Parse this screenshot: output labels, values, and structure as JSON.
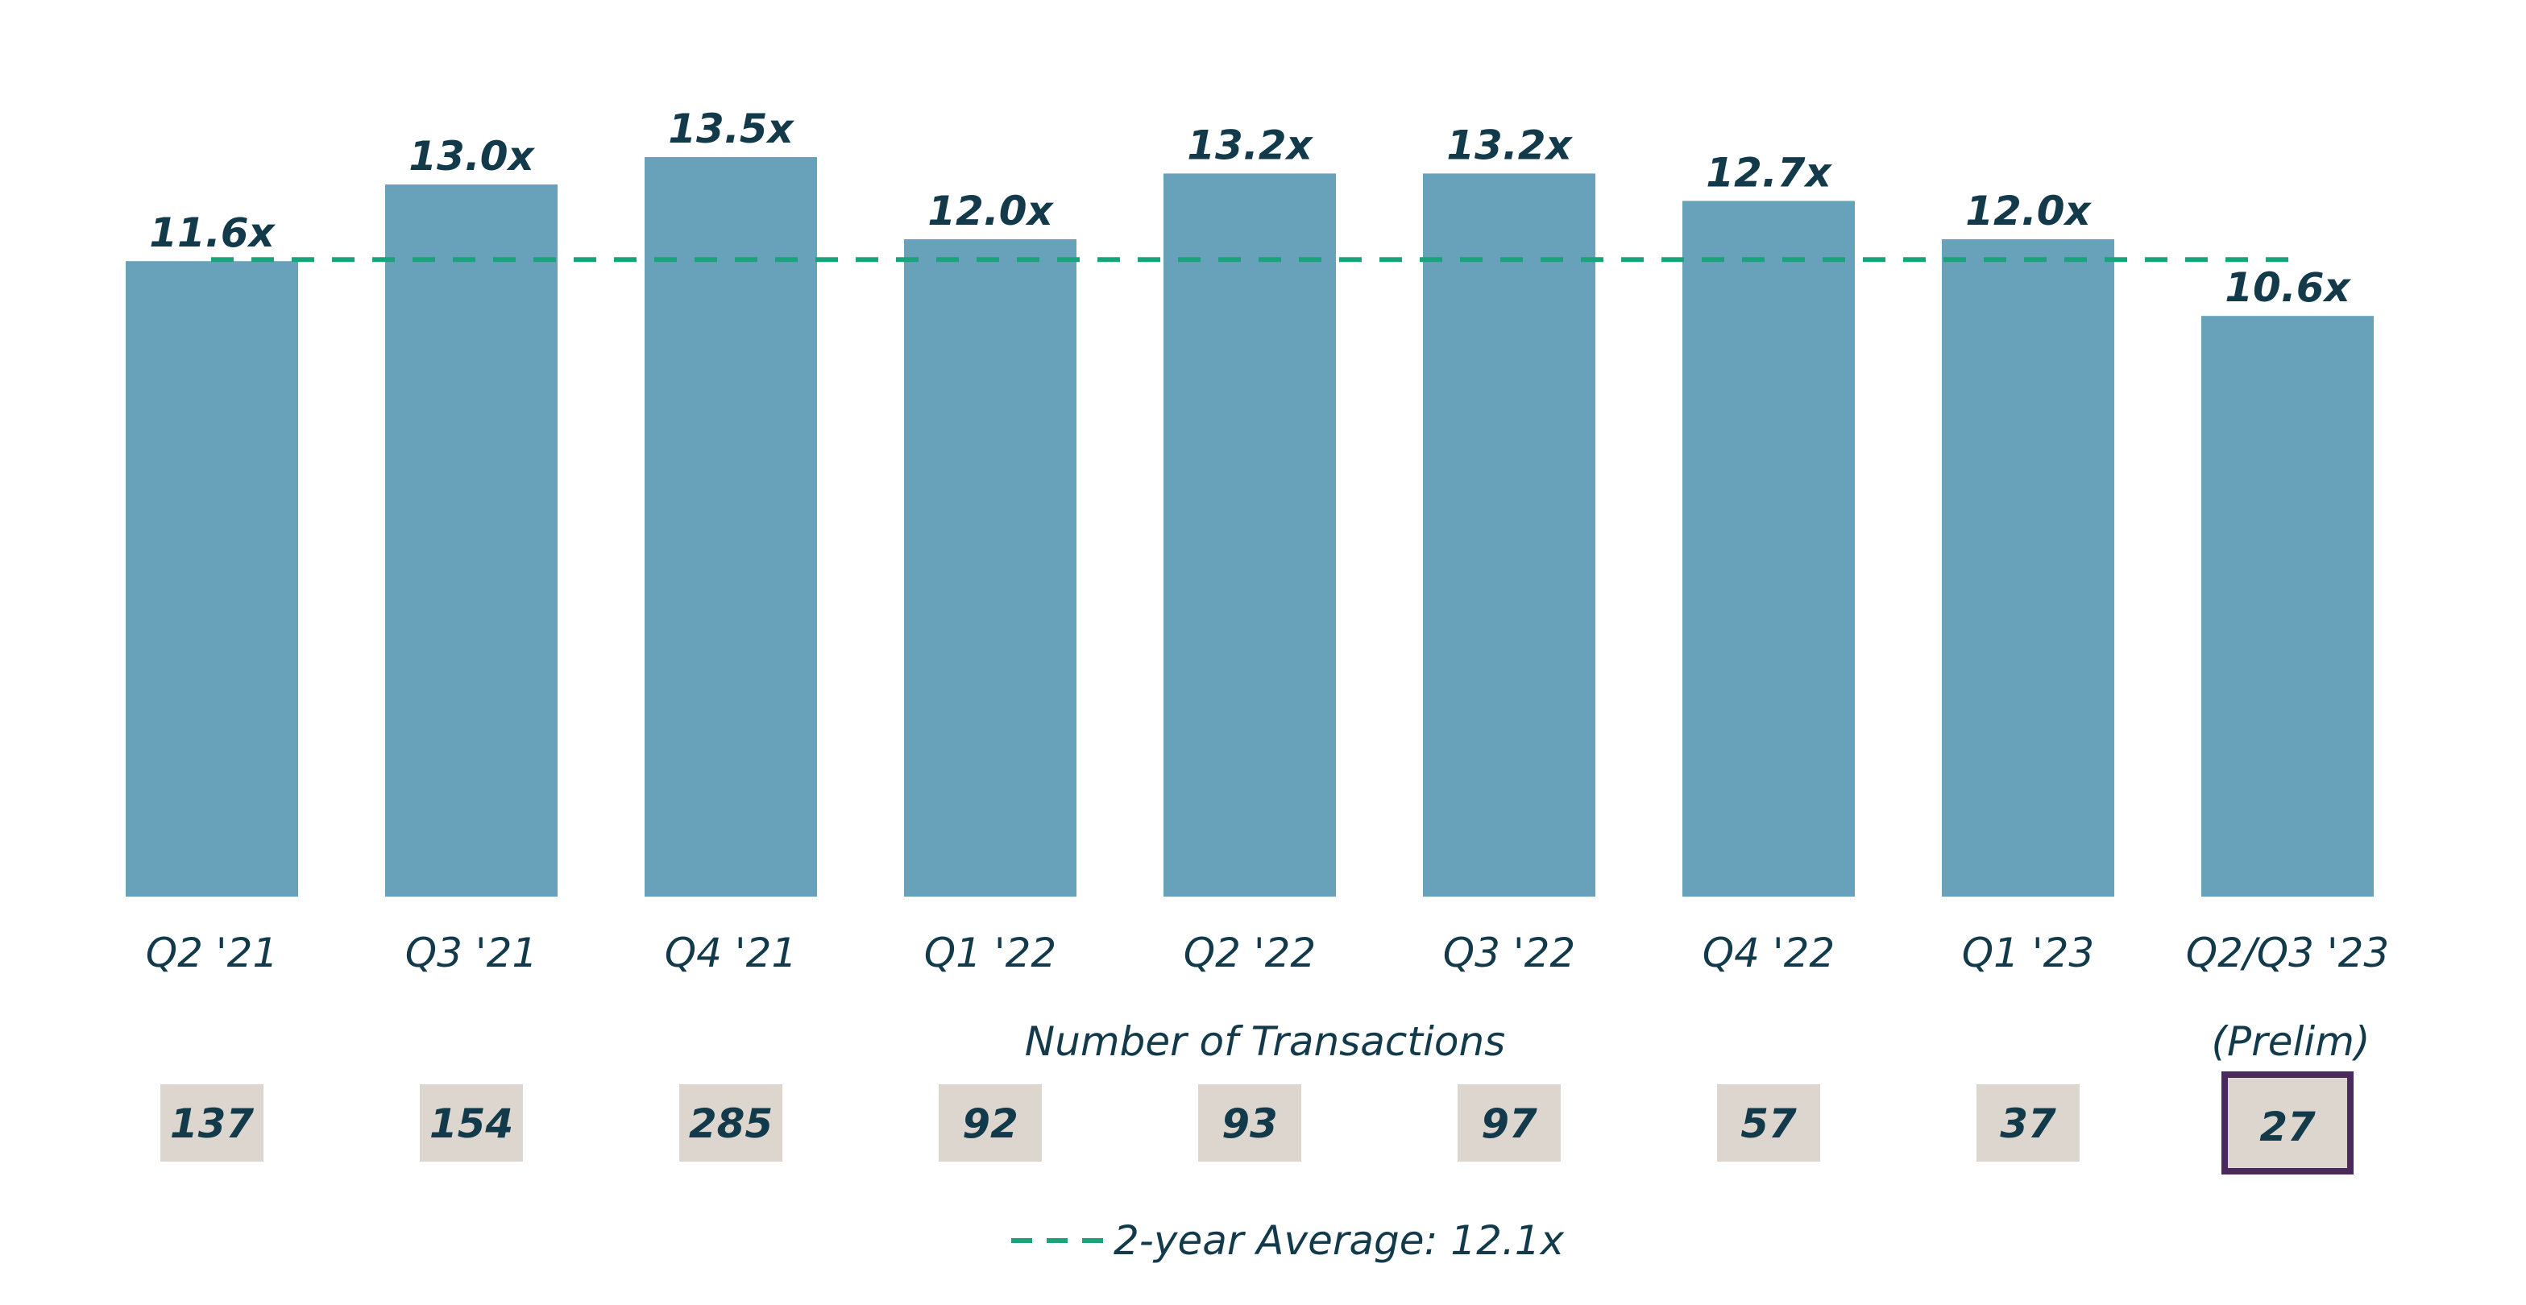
{
  "chart_data": {
    "type": "bar",
    "categories": [
      "Q2 '21",
      "Q3 '21",
      "Q4 '21",
      "Q1 '22",
      "Q2 '22",
      "Q3 '22",
      "Q4 '22",
      "Q1 '23",
      "Q2/Q3 '23"
    ],
    "category_note": "(Prelim)",
    "values": [
      11.6,
      13.0,
      13.5,
      12.0,
      13.2,
      13.2,
      12.7,
      12.0,
      10.6
    ],
    "value_labels": [
      "11.6x",
      "13.0x",
      "13.5x",
      "12.0x",
      "13.2x",
      "13.2x",
      "12.7x",
      "12.0x",
      "10.6x"
    ],
    "ylim": [
      0,
      13.5
    ],
    "average": 12.1,
    "average_label": "2-year Average: 12.1x",
    "transactions_title": "Number of Transactions",
    "transactions": [
      137,
      154,
      285,
      92,
      93,
      97,
      57,
      37,
      27
    ],
    "highlight_index": 8,
    "grid": false,
    "legend_position": "bottom-center"
  },
  "colors": {
    "bar": "#67a1ba",
    "average_line": "#1aa37a",
    "text": "#123a4a",
    "count_box": "#ddd6cf",
    "highlight_border": "#4a2a5a"
  }
}
